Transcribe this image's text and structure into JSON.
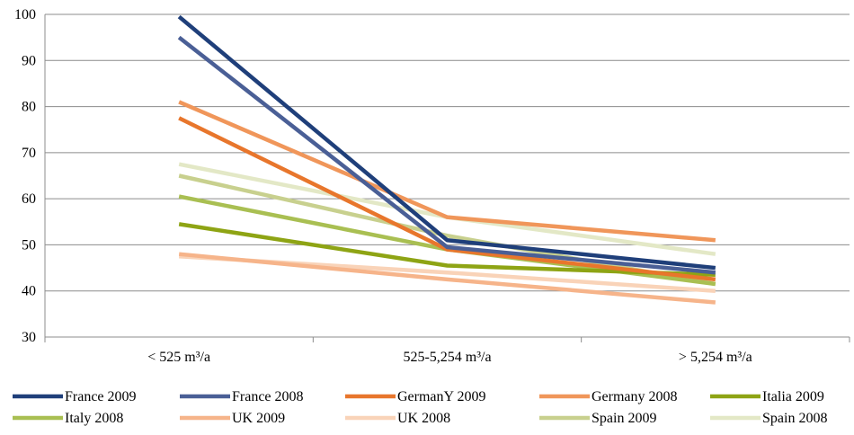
{
  "chart_data": {
    "type": "line",
    "title": "",
    "xlabel": "",
    "ylabel": "",
    "ylim": [
      30,
      100
    ],
    "yticks": [
      "30",
      "40",
      "50",
      "60",
      "70",
      "80",
      "90",
      "100"
    ],
    "categories": [
      "< 525 m³/a",
      "525-5,254 m³/a",
      "> 5,254 m³/a"
    ],
    "grid": "horizontal",
    "legend": "bottom",
    "series": [
      {
        "name": "France 2009",
        "color": "#1F3F7A",
        "values": [
          99.5,
          51,
          45
        ]
      },
      {
        "name": "France 2008",
        "color": "#4A5F96",
        "values": [
          95,
          49.5,
          44
        ]
      },
      {
        "name": "GermanY 2009",
        "color": "#E8762C",
        "values": [
          77.5,
          49,
          42.5
        ]
      },
      {
        "name": "Germany 2008",
        "color": "#F0965A",
        "values": [
          81,
          56,
          51
        ]
      },
      {
        "name": "Italia 2009",
        "color": "#8EA414",
        "values": [
          54.5,
          45.5,
          43.5
        ]
      },
      {
        "name": "Italy 2008",
        "color": "#A9BF52",
        "values": [
          60.5,
          49,
          41.5
        ]
      },
      {
        "name": "UK 2009",
        "color": "#F6B48A",
        "values": [
          48,
          42.5,
          37.5
        ]
      },
      {
        "name": "UK 2008",
        "color": "#F9D3B8",
        "values": [
          47.5,
          44,
          40
        ]
      },
      {
        "name": "Spain 2009",
        "color": "#C8D08E",
        "values": [
          65,
          52,
          41.5
        ]
      },
      {
        "name": "Spain 2008",
        "color": "#E3E8C6",
        "values": [
          67.5,
          56,
          48
        ]
      }
    ]
  }
}
